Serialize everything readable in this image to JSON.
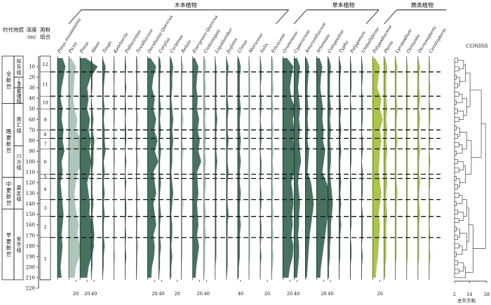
{
  "groups": [
    {
      "key": "tree",
      "label": "木本植物",
      "from": 0,
      "to": 19
    },
    {
      "key": "herb",
      "label": "草本植物",
      "from": 20,
      "to": 27
    },
    {
      "key": "fern",
      "label": "蕨类植物",
      "from": 28,
      "to": 33
    }
  ],
  "header": {
    "era": "时代",
    "stratum": "地层",
    "depth": "深度\n(m)",
    "zone": "孢粉\n组合",
    "coniss": "CONISS",
    "coniss_axis": "总平方和"
  },
  "era_units": [
    {
      "label": "全新世",
      "top": 0,
      "bottom": 45
    },
    {
      "label": "晚更新世",
      "top": 45,
      "bottom": 115
    },
    {
      "label": "中更新世",
      "top": 115,
      "bottom": 145
    },
    {
      "label": "早更新世",
      "top": 145,
      "bottom": 212
    }
  ],
  "strata_units": [
    {
      "label": "如东组",
      "top": 0,
      "bottom": 20
    },
    {
      "label": "上海组",
      "top": 20,
      "bottom": 30
    },
    {
      "label": "娄塘组",
      "top": 30,
      "bottom": 45
    },
    {
      "label": "南汇组",
      "top": 45,
      "bottom": 85
    },
    {
      "label": "川沙组",
      "top": 85,
      "bottom": 115
    },
    {
      "label": "嘉定组",
      "top": 115,
      "bottom": 145
    },
    {
      "label": "安亭组",
      "top": 145,
      "bottom": 212
    }
  ],
  "zones": [
    {
      "label": "12",
      "top": 0,
      "bottom": 15
    },
    {
      "label": "11",
      "top": 15,
      "bottom": 38
    },
    {
      "label": "10",
      "top": 38,
      "bottom": 50
    },
    {
      "label": "9",
      "top": 50,
      "bottom": 70
    },
    {
      "label": "8",
      "top": 70,
      "bottom": 78
    },
    {
      "label": "7",
      "top": 78,
      "bottom": 88
    },
    {
      "label": "6",
      "top": 88,
      "bottom": 112
    },
    {
      "label": "5",
      "top": 112,
      "bottom": 116
    },
    {
      "label": "4",
      "top": 116,
      "bottom": 136
    },
    {
      "label": "3",
      "top": 136,
      "bottom": 152
    },
    {
      "label": "2",
      "top": 152,
      "bottom": 172
    },
    {
      "label": "1",
      "top": 172,
      "bottom": 212
    }
  ],
  "chart_data": {
    "type": "area",
    "y_axis": {
      "label": "深度(m)",
      "min": 0,
      "max": 220,
      "ticks": [
        10,
        20,
        30,
        40,
        50,
        60,
        70,
        80,
        90,
        100,
        110,
        120,
        130,
        140,
        150,
        160,
        170,
        180,
        190,
        200,
        210,
        220
      ]
    },
    "depths": [
      2,
      10,
      20,
      30,
      40,
      50,
      60,
      70,
      80,
      90,
      100,
      110,
      120,
      130,
      140,
      150,
      160,
      170,
      180,
      190,
      200,
      210
    ],
    "zone_boundaries": [
      15,
      38,
      50,
      70,
      78,
      88,
      112,
      116,
      136,
      152,
      172
    ],
    "taxa": [
      {
        "name": "Pinus massoniana",
        "group": "tree",
        "values": [
          5,
          8,
          6,
          4,
          3,
          5,
          4,
          6,
          5,
          7,
          4,
          5,
          3,
          4,
          5,
          6,
          5,
          4,
          5,
          4,
          3,
          4
        ]
      },
      {
        "name": "Picea",
        "group": "tree",
        "values": [
          3,
          10,
          8,
          7,
          6,
          8,
          12,
          10,
          18,
          15,
          20,
          12,
          10,
          8,
          9,
          11,
          14,
          12,
          16,
          15,
          10,
          8
        ]
      },
      {
        "name": "Pinus",
        "group": "tree",
        "values": [
          8,
          25,
          15,
          10,
          12,
          10,
          14,
          12,
          15,
          13,
          16,
          14,
          10,
          12,
          14,
          13,
          18,
          15,
          20,
          16,
          12,
          10
        ]
      },
      {
        "name": "Abies",
        "group": "tree",
        "values": [
          0,
          2,
          1,
          1,
          0,
          1,
          2,
          1,
          3,
          2,
          2,
          1,
          1,
          1,
          2,
          1,
          2,
          3,
          2,
          1,
          1,
          0
        ]
      },
      {
        "name": "Tsuga",
        "group": "tree",
        "values": [
          0,
          3,
          2,
          1,
          1,
          2,
          1,
          2,
          2,
          3,
          1,
          2,
          1,
          2,
          1,
          2,
          1,
          1,
          2,
          1,
          1,
          0
        ]
      },
      {
        "name": "Keteleeria",
        "group": "tree",
        "values": [
          0,
          1,
          1,
          0,
          1,
          1,
          1,
          0,
          1,
          1,
          1,
          0,
          1,
          1,
          0,
          1,
          1,
          1,
          0,
          1,
          0,
          0
        ]
      },
      {
        "name": "Podocarpus",
        "group": "tree",
        "values": [
          0,
          1,
          0,
          1,
          0,
          1,
          0,
          1,
          1,
          0,
          1,
          0,
          1,
          0,
          1,
          1,
          0,
          1,
          0,
          1,
          0,
          0
        ]
      },
      {
        "name": "Taxodiaceae",
        "group": "tree",
        "values": [
          1,
          2,
          1,
          2,
          1,
          1,
          2,
          1,
          2,
          1,
          2,
          1,
          1,
          2,
          1,
          2,
          1,
          1,
          2,
          1,
          1,
          0
        ]
      },
      {
        "name": "Deciduous Quercus",
        "group": "tree",
        "values": [
          4,
          12,
          8,
          6,
          10,
          8,
          12,
          9,
          14,
          10,
          15,
          8,
          10,
          12,
          8,
          10,
          12,
          8,
          10,
          9,
          6,
          5
        ]
      },
      {
        "name": "Corylus",
        "group": "tree",
        "values": [
          1,
          2,
          1,
          1,
          1,
          2,
          1,
          2,
          1,
          2,
          1,
          1,
          2,
          1,
          1,
          2,
          1,
          1,
          2,
          1,
          1,
          0
        ]
      },
      {
        "name": "Carpinus",
        "group": "tree",
        "values": [
          1,
          3,
          2,
          2,
          1,
          2,
          3,
          2,
          3,
          2,
          2,
          1,
          2,
          3,
          2,
          1,
          2,
          2,
          1,
          2,
          1,
          1
        ]
      },
      {
        "name": "Betula",
        "group": "tree",
        "values": [
          0,
          2,
          1,
          1,
          1,
          1,
          2,
          1,
          1,
          2,
          1,
          1,
          1,
          1,
          2,
          1,
          1,
          1,
          1,
          1,
          0,
          0
        ]
      },
      {
        "name": "Evergreen Quercus",
        "group": "tree",
        "values": [
          3,
          8,
          6,
          5,
          7,
          6,
          9,
          7,
          10,
          8,
          12,
          6,
          7,
          8,
          6,
          7,
          8,
          6,
          9,
          7,
          5,
          4
        ]
      },
      {
        "name": "Castanopsis",
        "group": "tree",
        "values": [
          1,
          2,
          1,
          2,
          1,
          2,
          1,
          2,
          2,
          1,
          2,
          1,
          2,
          1,
          1,
          2,
          1,
          2,
          1,
          1,
          1,
          0
        ]
      },
      {
        "name": "Liquidambar",
        "group": "tree",
        "values": [
          0,
          1,
          1,
          1,
          1,
          1,
          2,
          1,
          1,
          1,
          2,
          1,
          1,
          1,
          1,
          1,
          1,
          1,
          1,
          1,
          0,
          0
        ]
      },
      {
        "name": "Juglans",
        "group": "tree",
        "values": [
          0,
          2,
          1,
          1,
          1,
          2,
          1,
          1,
          2,
          1,
          1,
          2,
          1,
          1,
          1,
          2,
          1,
          1,
          1,
          1,
          1,
          0
        ]
      },
      {
        "name": "Ulmus",
        "group": "tree",
        "values": [
          1,
          3,
          2,
          2,
          2,
          3,
          2,
          2,
          3,
          2,
          3,
          2,
          2,
          3,
          2,
          2,
          3,
          2,
          2,
          2,
          1,
          1
        ]
      },
      {
        "name": "Moraceae",
        "group": "tree",
        "values": [
          0,
          1,
          1,
          1,
          1,
          1,
          1,
          1,
          1,
          1,
          1,
          1,
          1,
          1,
          1,
          1,
          1,
          1,
          1,
          1,
          0,
          0
        ]
      },
      {
        "name": "Salix",
        "group": "tree",
        "values": [
          0,
          1,
          1,
          0,
          1,
          1,
          0,
          1,
          1,
          0,
          1,
          1,
          0,
          1,
          1,
          0,
          1,
          1,
          0,
          1,
          0,
          0
        ]
      },
      {
        "name": "Ericaceae",
        "group": "tree",
        "values": [
          1,
          2,
          1,
          2,
          1,
          2,
          1,
          2,
          1,
          2,
          1,
          2,
          1,
          2,
          1,
          2,
          1,
          2,
          1,
          2,
          1,
          0
        ]
      },
      {
        "name": "Gramineae",
        "group": "herb",
        "values": [
          6,
          15,
          12,
          10,
          12,
          18,
          14,
          16,
          15,
          18,
          20,
          16,
          12,
          14,
          15,
          13,
          14,
          12,
          15,
          14,
          10,
          8
        ]
      },
      {
        "name": "Cyperaceae",
        "group": "herb",
        "values": [
          3,
          6,
          5,
          4,
          5,
          6,
          5,
          6,
          5,
          6,
          7,
          5,
          4,
          5,
          6,
          5,
          5,
          4,
          5,
          5,
          4,
          3
        ]
      },
      {
        "name": "Amaranthaceae",
        "group": "herb",
        "values": [
          2,
          5,
          4,
          3,
          3,
          4,
          3,
          4,
          3,
          5,
          4,
          3,
          8,
          10,
          12,
          10,
          8,
          6,
          5,
          4,
          3,
          2
        ]
      },
      {
        "name": "Artemisia",
        "group": "herb",
        "values": [
          4,
          8,
          6,
          5,
          7,
          9,
          8,
          10,
          9,
          12,
          10,
          8,
          14,
          18,
          20,
          16,
          14,
          12,
          10,
          8,
          6,
          5
        ]
      },
      {
        "name": "Compositae",
        "group": "herb",
        "values": [
          1,
          3,
          2,
          2,
          2,
          3,
          2,
          3,
          2,
          3,
          3,
          2,
          3,
          4,
          5,
          4,
          3,
          3,
          2,
          2,
          1,
          1
        ]
      },
      {
        "name": "Typha",
        "group": "herb",
        "values": [
          0,
          2,
          1,
          1,
          1,
          2,
          1,
          2,
          1,
          2,
          1,
          1,
          2,
          1,
          2,
          1,
          2,
          1,
          1,
          1,
          0,
          0
        ]
      },
      {
        "name": "Polygonum",
        "group": "herb",
        "values": [
          0,
          1,
          1,
          1,
          0,
          1,
          1,
          1,
          1,
          1,
          1,
          0,
          1,
          1,
          1,
          1,
          1,
          0,
          1,
          1,
          0,
          0
        ]
      },
      {
        "name": "Umbelliferae",
        "group": "herb",
        "values": [
          0,
          1,
          1,
          0,
          1,
          1,
          1,
          0,
          1,
          1,
          0,
          1,
          1,
          1,
          0,
          1,
          1,
          1,
          0,
          1,
          0,
          0
        ]
      },
      {
        "name": "Polypodiaceae",
        "group": "fern",
        "values": [
          3,
          10,
          8,
          6,
          12,
          10,
          14,
          10,
          12,
          10,
          9,
          8,
          10,
          12,
          10,
          8,
          10,
          9,
          8,
          7,
          5,
          4
        ]
      },
      {
        "name": "Pteris",
        "group": "fern",
        "values": [
          1,
          3,
          2,
          2,
          2,
          3,
          2,
          3,
          2,
          3,
          2,
          2,
          3,
          2,
          2,
          3,
          2,
          2,
          2,
          2,
          1,
          1
        ]
      },
      {
        "name": "Lycopodium",
        "group": "fern",
        "values": [
          0,
          2,
          1,
          1,
          1,
          2,
          1,
          1,
          2,
          1,
          1,
          1,
          1,
          2,
          1,
          1,
          1,
          1,
          1,
          1,
          0,
          0
        ]
      },
      {
        "name": "Osmunda",
        "group": "fern",
        "values": [
          0,
          1,
          1,
          1,
          1,
          1,
          1,
          1,
          1,
          1,
          1,
          1,
          1,
          1,
          1,
          1,
          1,
          1,
          1,
          1,
          0,
          0
        ]
      },
      {
        "name": "Dicranopteris",
        "group": "fern",
        "values": [
          0,
          2,
          1,
          1,
          2,
          1,
          2,
          1,
          1,
          2,
          1,
          1,
          2,
          1,
          1,
          2,
          1,
          1,
          1,
          1,
          0,
          0
        ]
      },
      {
        "name": "Ceratopteris",
        "group": "fern",
        "values": [
          0,
          1,
          0,
          1,
          0,
          1,
          1,
          0,
          1,
          0,
          1,
          0,
          1,
          0,
          1,
          1,
          0,
          1,
          0,
          1,
          0,
          0
        ]
      }
    ],
    "x_ticks": [
      "20",
      "20",
      "40",
      "20",
      "40",
      "20",
      "40",
      "20",
      "40",
      "20",
      "20",
      "40",
      "20",
      "40",
      "20"
    ],
    "coniss": {
      "label": "CONISS",
      "x_axis_label": "总平方和",
      "x_ticks": [
        2,
        14,
        28
      ],
      "xlim": [
        2,
        28
      ]
    }
  },
  "colors": {
    "tree_dark": "#3d6b57",
    "tree_light": "#a9c3b6",
    "herb": "#3d6b57",
    "fern": "#a5c43a",
    "dash": "#111111"
  }
}
